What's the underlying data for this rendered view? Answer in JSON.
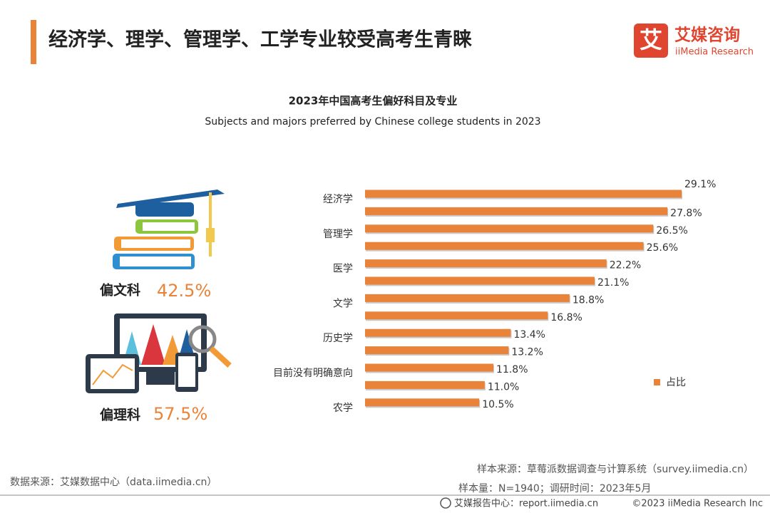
{
  "header": {
    "title": "经济学、理学、管理学、工学专业较受高考生青睐"
  },
  "logo": {
    "mark": "艾",
    "name": "艾媒咨询",
    "en": "iiMedia Research"
  },
  "chart_data": {
    "type": "bar",
    "orientation": "horizontal",
    "title": "2023年中国高考生偏好科目及专业",
    "subtitle": "Subjects and majors preferred by Chinese college students in 2023",
    "categories": [
      "经济学",
      null,
      "管理学",
      null,
      "医学",
      null,
      "文学",
      null,
      "历史学",
      null,
      "目前没有明确意向",
      null,
      "农学"
    ],
    "series": [
      {
        "name": "占比",
        "color": "#e9833a",
        "values": [
          29.1,
          27.8,
          26.5,
          25.6,
          22.2,
          21.1,
          18.8,
          16.8,
          13.4,
          13.2,
          11.8,
          11.0,
          10.5
        ],
        "value_labels": [
          "29.1%",
          "27.8%",
          "26.5%",
          "25.6%",
          "22.2%",
          "21.1%",
          "18.8%",
          "16.8%",
          "13.4%",
          "13.2%",
          "11.8%",
          "11.0%",
          "10.5%"
        ]
      }
    ],
    "legend": "right"
  },
  "summary": [
    {
      "label": "偏文科",
      "value": "42.5%"
    },
    {
      "label": "偏理科",
      "value": "57.5%"
    }
  ],
  "footer": {
    "source": "数据来源：艾媒数据中心（data.iimedia.cn）",
    "sample_source": "样本来源：草莓派数据调查与计算系统（survey.iimedia.cn）",
    "sample_size": "样本量：N=1940；调研时间：2023年5月",
    "report": "艾媒报告中心：report.iimedia.cn",
    "copyright": "©2023  iiMedia Research  Inc"
  }
}
